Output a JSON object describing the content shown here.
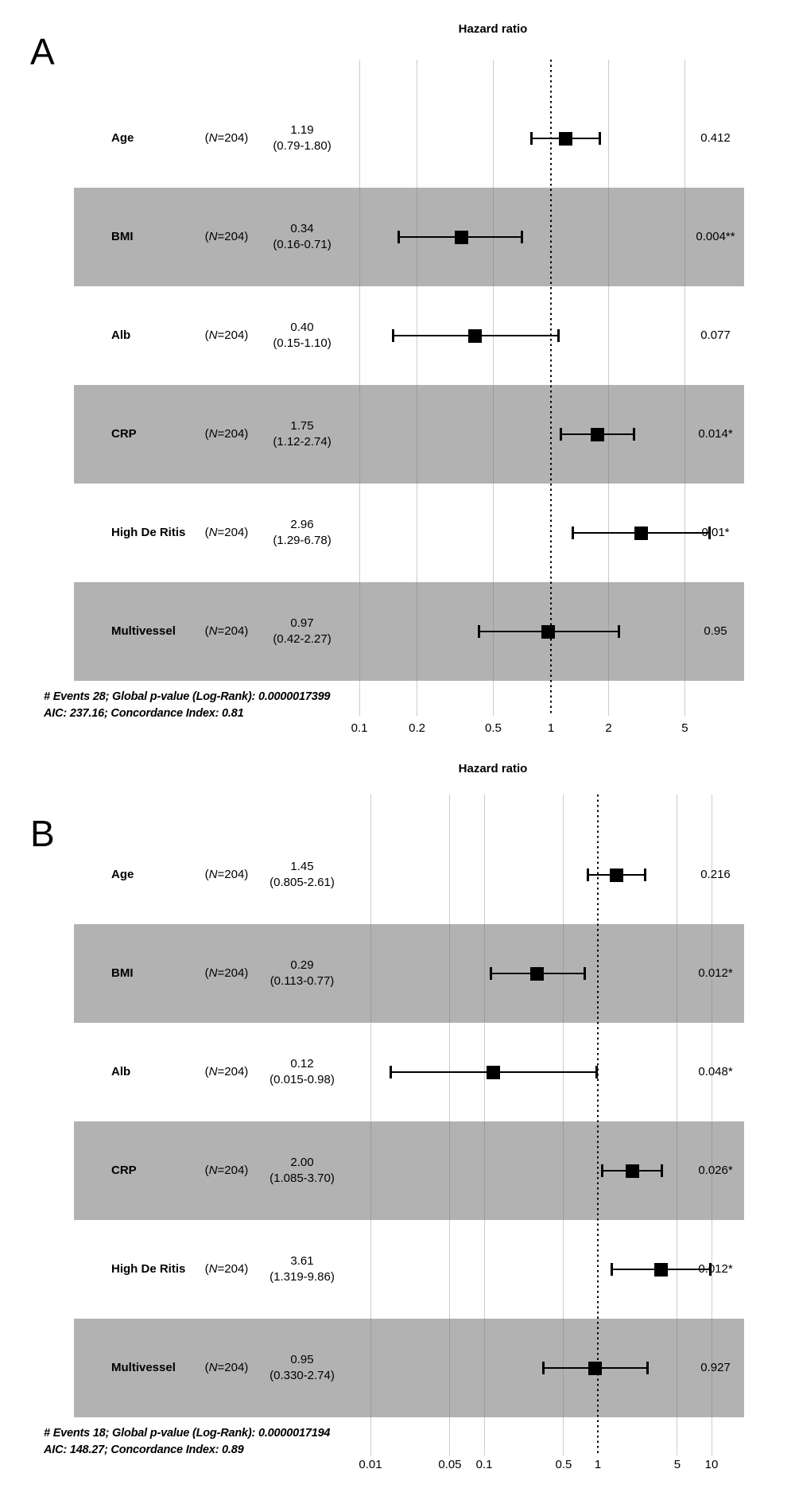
{
  "colors": {
    "stripe_band": "#b2b2b2",
    "marker": "#000000",
    "text": "#000000"
  },
  "chart_data": [
    {
      "type": "forest",
      "panel_label": "A",
      "title": "Hazard ratio",
      "scale": "log10",
      "ref_line": 1,
      "x_ticks": [
        0.1,
        0.2,
        0.5,
        1,
        2,
        5
      ],
      "x_tick_labels": [
        "0.1",
        "0.2",
        "0.5",
        "1",
        "2",
        "5"
      ],
      "rows": [
        {
          "label": "Age",
          "n_label": "(N=204)",
          "estimate": "1.19",
          "ci_text": "(0.79-1.80)",
          "hr": 1.19,
          "ci_low": 0.79,
          "ci_high": 1.8,
          "p": "0.412",
          "shaded": false
        },
        {
          "label": "BMI",
          "n_label": "(N=204)",
          "estimate": "0.34",
          "ci_text": "(0.16-0.71)",
          "hr": 0.34,
          "ci_low": 0.16,
          "ci_high": 0.71,
          "p": "0.004**",
          "shaded": true
        },
        {
          "label": "Alb",
          "n_label": "(N=204)",
          "estimate": "0.40",
          "ci_text": "(0.15-1.10)",
          "hr": 0.4,
          "ci_low": 0.15,
          "ci_high": 1.1,
          "p": "0.077",
          "shaded": false
        },
        {
          "label": "CRP",
          "n_label": "(N=204)",
          "estimate": "1.75",
          "ci_text": "(1.12-2.74)",
          "hr": 1.75,
          "ci_low": 1.12,
          "ci_high": 2.74,
          "p": "0.014*",
          "shaded": true
        },
        {
          "label": "High De Ritis",
          "n_label": "(N=204)",
          "estimate": "2.96",
          "ci_text": "(1.29-6.78)",
          "hr": 2.96,
          "ci_low": 1.29,
          "ci_high": 6.78,
          "p": "0.01*",
          "shaded": false
        },
        {
          "label": "Multivessel",
          "n_label": "(N=204)",
          "estimate": "0.97",
          "ci_text": "(0.42-2.27)",
          "hr": 0.97,
          "ci_low": 0.42,
          "ci_high": 2.27,
          "p": "0.95",
          "shaded": true
        }
      ],
      "footer_line1": "# Events 28; Global p-value (Log-Rank): 0.0000017399",
      "footer_line2": "AIC: 237.16; Concordance Index: 0.81"
    },
    {
      "type": "forest",
      "panel_label": "B",
      "title": "Hazard ratio",
      "scale": "log10",
      "ref_line": 1,
      "x_ticks": [
        0.01,
        0.05,
        0.1,
        0.5,
        1,
        5,
        10
      ],
      "x_tick_labels": [
        "0.01",
        "0.05",
        "0.1",
        "0.5",
        "1",
        "5",
        "10"
      ],
      "rows": [
        {
          "label": "Age",
          "n_label": "(N=204)",
          "estimate": "1.45",
          "ci_text": "(0.805-2.61)",
          "hr": 1.45,
          "ci_low": 0.805,
          "ci_high": 2.61,
          "p": "0.216",
          "shaded": false
        },
        {
          "label": "BMI",
          "n_label": "(N=204)",
          "estimate": "0.29",
          "ci_text": "(0.113-0.77)",
          "hr": 0.29,
          "ci_low": 0.113,
          "ci_high": 0.77,
          "p": "0.012*",
          "shaded": true
        },
        {
          "label": "Alb",
          "n_label": "(N=204)",
          "estimate": "0.12",
          "ci_text": "(0.015-0.98)",
          "hr": 0.12,
          "ci_low": 0.015,
          "ci_high": 0.98,
          "p": "0.048*",
          "shaded": false
        },
        {
          "label": "CRP",
          "n_label": "(N=204)",
          "estimate": "2.00",
          "ci_text": "(1.085-3.70)",
          "hr": 2.0,
          "ci_low": 1.085,
          "ci_high": 3.7,
          "p": "0.026*",
          "shaded": true
        },
        {
          "label": "High De Ritis",
          "n_label": "(N=204)",
          "estimate": "3.61",
          "ci_text": "(1.319-9.86)",
          "hr": 3.61,
          "ci_low": 1.319,
          "ci_high": 9.86,
          "p": "0.012*",
          "shaded": false
        },
        {
          "label": "Multivessel",
          "n_label": "(N=204)",
          "estimate": "0.95",
          "ci_text": "(0.330-2.74)",
          "hr": 0.95,
          "ci_low": 0.33,
          "ci_high": 2.74,
          "p": "0.927",
          "shaded": true
        }
      ],
      "footer_line1": "# Events 18; Global p-value (Log-Rank): 0.0000017194",
      "footer_line2": "AIC: 148.27; Concordance Index: 0.89"
    }
  ]
}
